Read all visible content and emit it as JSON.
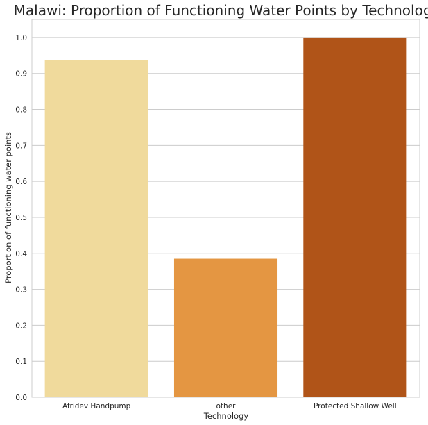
{
  "chart_data": {
    "type": "bar",
    "title": "Malawi: Proportion of Functioning Water Points by Technology",
    "xlabel": "Technology",
    "ylabel": "Proportion of functioning water points",
    "categories": [
      "Afridev Handpump",
      "other",
      "Protected Shallow Well"
    ],
    "values": [
      0.937,
      0.385,
      1.0
    ],
    "colors": [
      "#f0da9c",
      "#e49642",
      "#b05418"
    ],
    "ylim": [
      0,
      1.05
    ],
    "yticks": [
      "0.0",
      "0.1",
      "0.2",
      "0.3",
      "0.4",
      "0.5",
      "0.6",
      "0.7",
      "0.8",
      "0.9",
      "1.0"
    ],
    "grid": true,
    "gridColor": "#cccccc"
  }
}
